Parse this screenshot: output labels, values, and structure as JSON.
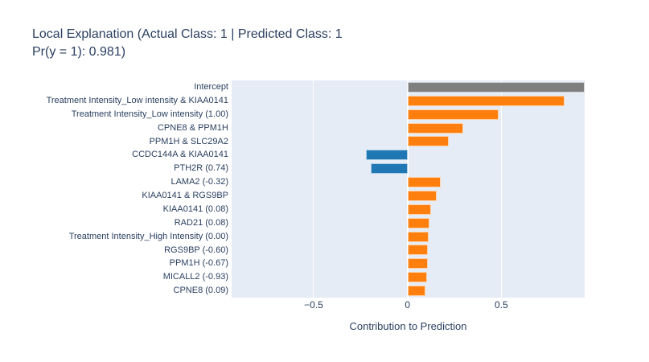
{
  "title": {
    "line1": "Local Explanation (Actual Class: 1 | Predicted Class: 1",
    "line2": "Pr(y = 1): 0.981)"
  },
  "chart_data": {
    "type": "bar",
    "orientation": "horizontal",
    "title": "Local Explanation (Actual Class: 1 | Predicted Class: 1 Pr(y = 1): 0.981)",
    "xlabel": "Contribution to Prediction",
    "ylabel": "",
    "categories": [
      "Intercept",
      "Treatment Intensity_Low intensity & KIAA0141",
      "Treatment Intensity_Low intensity (1.00)",
      "CPNE8 & PPM1H",
      "PPM1H & SLC29A2",
      "CCDC144A & KIAA0141",
      "PTH2R (0.74)",
      "LAMA2 (-0.32)",
      "KIAA0141 & RGS9BP",
      "KIAA0141 (0.08)",
      "RAD21 (0.08)",
      "Treatment Intensity_High Intensity (0.00)",
      "RGS9BP (-0.60)",
      "PPM1H (-0.67)",
      "MICALL2 (-0.93)",
      "CPNE8 (0.09)"
    ],
    "values": [
      0.944,
      0.836,
      0.486,
      0.297,
      0.22,
      -0.22,
      -0.197,
      0.179,
      0.154,
      0.124,
      0.118,
      0.112,
      0.11,
      0.107,
      0.104,
      0.094
    ],
    "bar_colors": [
      "#7f7f7f",
      "#ff7f0e",
      "#ff7f0e",
      "#ff7f0e",
      "#ff7f0e",
      "#1f77b4",
      "#1f77b4",
      "#ff7f0e",
      "#ff7f0e",
      "#ff7f0e",
      "#ff7f0e",
      "#ff7f0e",
      "#ff7f0e",
      "#ff7f0e",
      "#ff7f0e",
      "#ff7f0e"
    ],
    "color_legend": {
      "intercept": "#7f7f7f",
      "positive_contribution": "#ff7f0e",
      "negative_contribution": "#1f77b4"
    },
    "xlim": [
      -0.937,
      0.944
    ],
    "xticks": [
      -0.5,
      0,
      0.5
    ],
    "xtick_labels": [
      "−0.5",
      "0",
      "0.5"
    ],
    "grid": true,
    "legend_position": "none",
    "plot_bg_color": "#e5ecf6",
    "grid_color": "#ffffff",
    "text_color": "#2a3f5f"
  }
}
